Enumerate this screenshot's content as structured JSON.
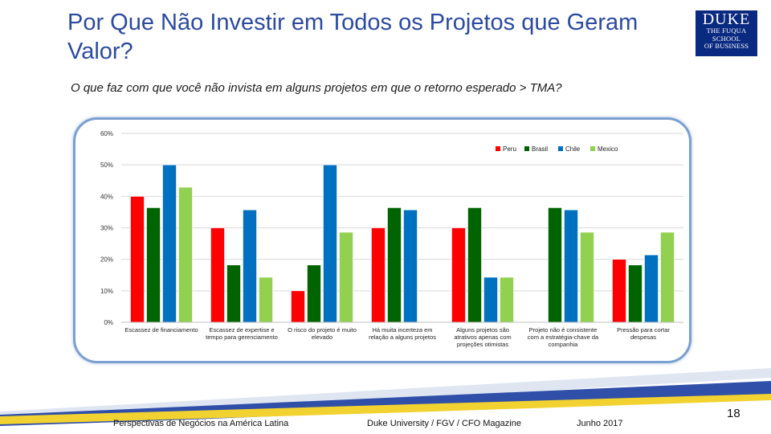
{
  "slide": {
    "title": "Por Que Não Investir em Todos os Projetos que Geram Valor?",
    "subtitle": "O que faz com que você não invista em alguns projetos em que o retorno esperado > TMA?",
    "logo": {
      "line1": "DUKE",
      "line2": "THE FUQUA",
      "line3": "SCHOOL",
      "line4": "OF BUSINESS",
      "color": "#0a2a82"
    },
    "footer": {
      "left": "Perspectivas de Negócios na América Latina",
      "center": "Duke University / FGV / CFO Magazine",
      "date": "Junho 2017"
    },
    "page_number": "18"
  },
  "chart_data": {
    "type": "bar",
    "categories": [
      [
        "Escassez de financiamento"
      ],
      [
        "Escassez de expertise e",
        "tempo para gerenciamento"
      ],
      [
        "O risco do projeto é muito",
        "elevado"
      ],
      [
        "Há muita incerteza em",
        "relação a alguns projetos"
      ],
      [
        "Alguns projetos são",
        "atrativos apenas com",
        "projeções otimistas"
      ],
      [
        "Projeto não é consistente",
        "com a estratégia-chave da",
        "companhia"
      ],
      [
        "Pressão para cortar",
        "despesas"
      ]
    ],
    "series": [
      {
        "name": "Peru",
        "color": "#ff0000",
        "values": [
          40,
          30,
          10,
          30,
          30,
          0,
          20
        ]
      },
      {
        "name": "Brasil",
        "color": "#006400",
        "values": [
          36.4,
          18.2,
          18.2,
          36.4,
          36.4,
          36.4,
          18.2
        ]
      },
      {
        "name": "Chile",
        "color": "#0070c0",
        "values": [
          50,
          35.7,
          50,
          35.7,
          14.3,
          35.7,
          21.4
        ]
      },
      {
        "name": "Mexico",
        "color": "#92d050",
        "values": [
          42.9,
          14.3,
          28.6,
          0,
          14.3,
          28.6,
          28.6
        ]
      }
    ],
    "yticks": [
      "0%",
      "10%",
      "20%",
      "30%",
      "40%",
      "50%",
      "60%"
    ],
    "ylim": [
      0,
      60
    ],
    "grid": true,
    "legend_position": "top-right"
  }
}
